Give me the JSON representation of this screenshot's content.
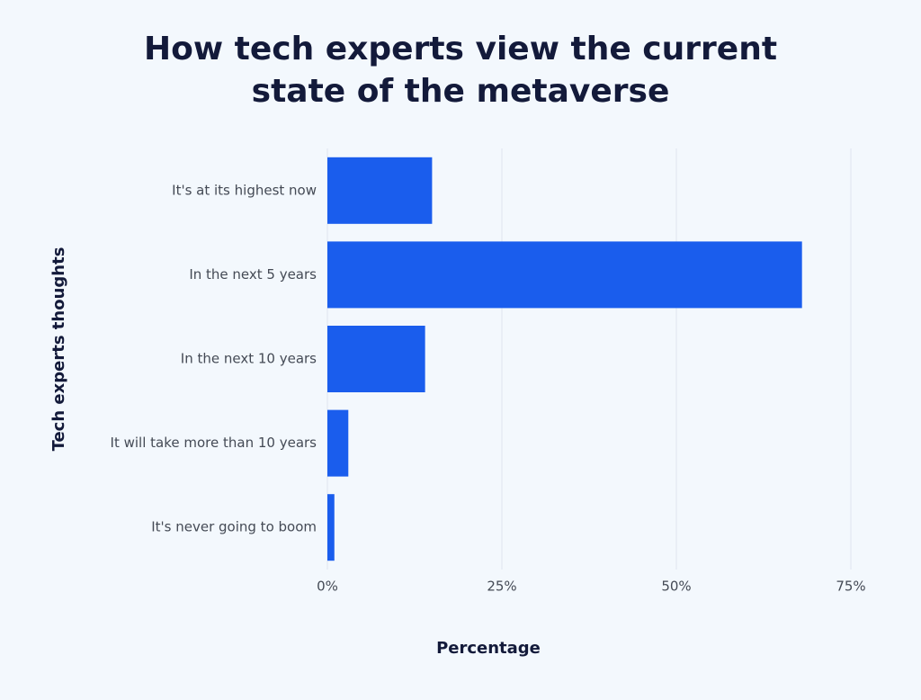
{
  "chart_data": {
    "type": "bar",
    "orientation": "horizontal",
    "title": [
      "How tech experts view the current",
      "state of the metaverse"
    ],
    "x_label": "Percentage",
    "y_label": "Tech experts thoughts",
    "categories": [
      "It's at its highest now",
      "In the next 5 years",
      "In the next 10 years",
      "It will take more than 10 years",
      "It's never going to boom"
    ],
    "values": [
      15,
      68,
      14,
      3,
      1
    ],
    "color": "#1a5ded",
    "xlim": [
      0,
      75
    ],
    "xticks": [
      {
        "value": 0,
        "label": "0%"
      },
      {
        "value": 25,
        "label": "25%"
      },
      {
        "value": 50,
        "label": "50%"
      },
      {
        "value": 75,
        "label": "75%"
      }
    ],
    "grid": true
  }
}
